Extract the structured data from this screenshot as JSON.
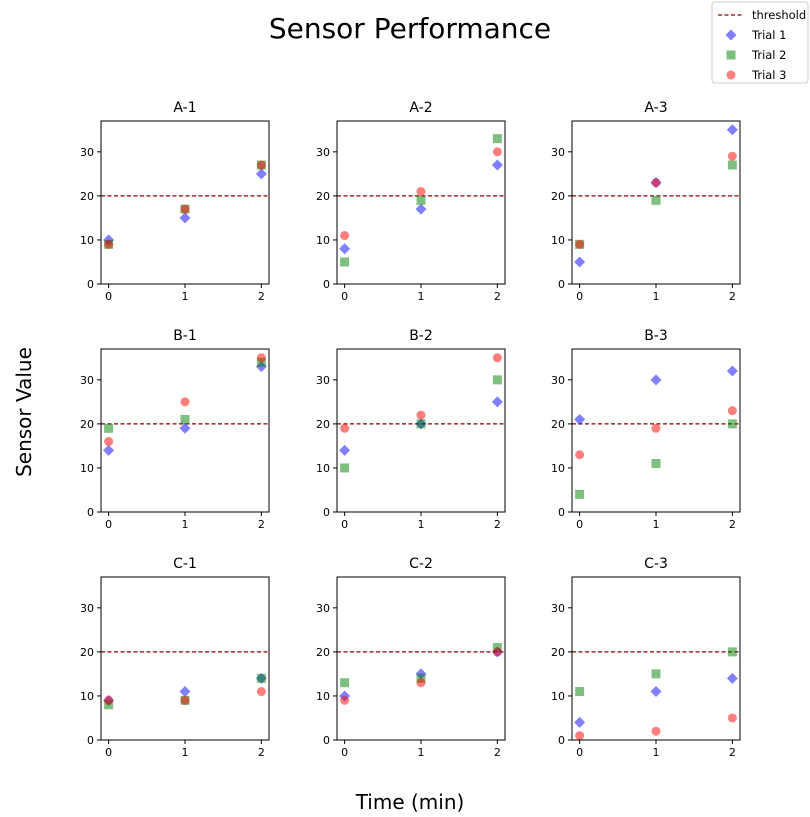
{
  "chart_data": {
    "type": "scatter",
    "title": "Sensor Performance",
    "xlabel": "Time (min)",
    "ylabel": "Sensor Value",
    "x": [
      0,
      1,
      2
    ],
    "x_ticks": [
      0,
      1,
      2
    ],
    "y_ticks": [
      0,
      10,
      20,
      30
    ],
    "xlim": [
      -0.1,
      2.1
    ],
    "ylim": [
      0,
      37
    ],
    "grid": false,
    "legend_position": "top-right",
    "threshold": {
      "name": "threshold",
      "value": 20,
      "color": "#8b0000"
    },
    "series_styles": [
      {
        "name": "Trial 1",
        "marker": "diamond",
        "color": "#0000ff"
      },
      {
        "name": "Trial 2",
        "marker": "square",
        "color": "#008000"
      },
      {
        "name": "Trial 3",
        "marker": "circle",
        "color": "#ff0000"
      }
    ],
    "panels": [
      {
        "title": "A-1",
        "series": [
          {
            "name": "Trial 1",
            "values": [
              10,
              15,
              25
            ]
          },
          {
            "name": "Trial 2",
            "values": [
              9,
              17,
              27
            ]
          },
          {
            "name": "Trial 3",
            "values": [
              9,
              17,
              27
            ]
          }
        ]
      },
      {
        "title": "A-2",
        "series": [
          {
            "name": "Trial 1",
            "values": [
              8,
              17,
              27
            ]
          },
          {
            "name": "Trial 2",
            "values": [
              5,
              19,
              33
            ]
          },
          {
            "name": "Trial 3",
            "values": [
              11,
              21,
              30
            ]
          }
        ]
      },
      {
        "title": "A-3",
        "series": [
          {
            "name": "Trial 1",
            "values": [
              5,
              23,
              35
            ]
          },
          {
            "name": "Trial 2",
            "values": [
              9,
              19,
              27
            ]
          },
          {
            "name": "Trial 3",
            "values": [
              9,
              23,
              29
            ]
          }
        ]
      },
      {
        "title": "B-1",
        "series": [
          {
            "name": "Trial 1",
            "values": [
              14,
              19,
              33
            ]
          },
          {
            "name": "Trial 2",
            "values": [
              19,
              21,
              34
            ]
          },
          {
            "name": "Trial 3",
            "values": [
              16,
              25,
              35
            ]
          }
        ]
      },
      {
        "title": "B-2",
        "series": [
          {
            "name": "Trial 1",
            "values": [
              14,
              20,
              25
            ]
          },
          {
            "name": "Trial 2",
            "values": [
              10,
              20,
              30
            ]
          },
          {
            "name": "Trial 3",
            "values": [
              19,
              22,
              35
            ]
          }
        ]
      },
      {
        "title": "B-3",
        "series": [
          {
            "name": "Trial 1",
            "values": [
              21,
              30,
              32
            ]
          },
          {
            "name": "Trial 2",
            "values": [
              4,
              11,
              20
            ]
          },
          {
            "name": "Trial 3",
            "values": [
              13,
              19,
              23
            ]
          }
        ]
      },
      {
        "title": "C-1",
        "series": [
          {
            "name": "Trial 1",
            "values": [
              9,
              11,
              14
            ]
          },
          {
            "name": "Trial 2",
            "values": [
              8,
              9,
              14
            ]
          },
          {
            "name": "Trial 3",
            "values": [
              9,
              9,
              11
            ]
          }
        ]
      },
      {
        "title": "C-2",
        "series": [
          {
            "name": "Trial 1",
            "values": [
              10,
              15,
              20
            ]
          },
          {
            "name": "Trial 2",
            "values": [
              13,
              14,
              21
            ]
          },
          {
            "name": "Trial 3",
            "values": [
              9,
              13,
              20
            ]
          }
        ]
      },
      {
        "title": "C-3",
        "series": [
          {
            "name": "Trial 1",
            "values": [
              4,
              11,
              14
            ]
          },
          {
            "name": "Trial 2",
            "values": [
              11,
              15,
              20
            ]
          },
          {
            "name": "Trial 3",
            "values": [
              1,
              2,
              5
            ]
          }
        ]
      }
    ]
  }
}
